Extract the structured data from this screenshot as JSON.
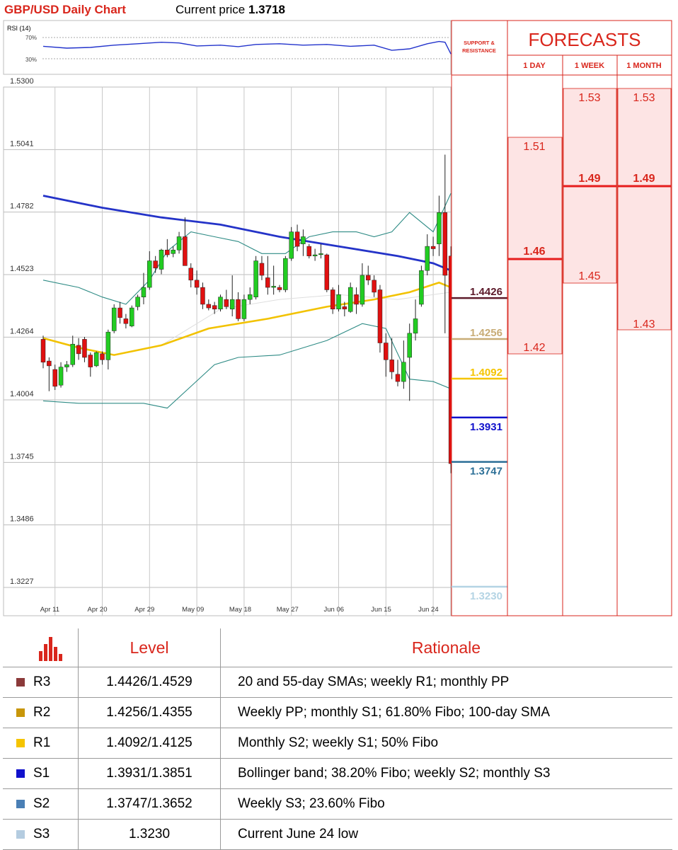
{
  "header": {
    "title": "GBP/USD Daily Chart",
    "price_label": "Current price",
    "price_value": "1.3718"
  },
  "rsi_panel": {
    "label": "RSI (14)",
    "level_high": "70%",
    "level_low": "30%"
  },
  "chart_data": {
    "type": "candlestick",
    "title": "GBP/USD Daily Chart",
    "y_ticks": [
      "1.5300",
      "1.5041",
      "1.4782",
      "1.4523",
      "1.4264",
      "1.4004",
      "1.3745",
      "1.3486",
      "1.3227"
    ],
    "ylim": [
      1.3227,
      1.53
    ],
    "x_ticks": [
      "Apr 11",
      "Apr 20",
      "Apr 29",
      "May 09",
      "May 18",
      "May 27",
      "Jun 06",
      "Jun 15",
      "Jun 24"
    ],
    "grid": true,
    "candles": [
      {
        "o": 1.4255,
        "h": 1.427,
        "l": 1.4135,
        "c": 1.416
      },
      {
        "o": 1.4165,
        "h": 1.418,
        "l": 1.404,
        "c": 1.4145
      },
      {
        "o": 1.413,
        "h": 1.415,
        "l": 1.4045,
        "c": 1.406
      },
      {
        "o": 1.4065,
        "h": 1.416,
        "l": 1.4055,
        "c": 1.414
      },
      {
        "o": 1.414,
        "h": 1.4165,
        "l": 1.412,
        "c": 1.415
      },
      {
        "o": 1.415,
        "h": 1.427,
        "l": 1.414,
        "c": 1.4235
      },
      {
        "o": 1.423,
        "h": 1.426,
        "l": 1.417,
        "c": 1.4195
      },
      {
        "o": 1.4255,
        "h": 1.4265,
        "l": 1.416,
        "c": 1.418
      },
      {
        "o": 1.419,
        "h": 1.42,
        "l": 1.41,
        "c": 1.414
      },
      {
        "o": 1.4145,
        "h": 1.4205,
        "l": 1.414,
        "c": 1.42
      },
      {
        "o": 1.4195,
        "h": 1.4205,
        "l": 1.415,
        "c": 1.417
      },
      {
        "o": 1.417,
        "h": 1.4295,
        "l": 1.413,
        "c": 1.4285
      },
      {
        "o": 1.429,
        "h": 1.44,
        "l": 1.428,
        "c": 1.4385
      },
      {
        "o": 1.4385,
        "h": 1.441,
        "l": 1.432,
        "c": 1.4345
      },
      {
        "o": 1.434,
        "h": 1.436,
        "l": 1.43,
        "c": 1.432
      },
      {
        "o": 1.431,
        "h": 1.4395,
        "l": 1.4305,
        "c": 1.4385
      },
      {
        "o": 1.439,
        "h": 1.444,
        "l": 1.4375,
        "c": 1.443
      },
      {
        "o": 1.443,
        "h": 1.453,
        "l": 1.44,
        "c": 1.447
      },
      {
        "o": 1.447,
        "h": 1.462,
        "l": 1.446,
        "c": 1.458
      },
      {
        "o": 1.458,
        "h": 1.46,
        "l": 1.453,
        "c": 1.455
      },
      {
        "o": 1.4545,
        "h": 1.463,
        "l": 1.4525,
        "c": 1.4625
      },
      {
        "o": 1.4625,
        "h": 1.467,
        "l": 1.4595,
        "c": 1.4605
      },
      {
        "o": 1.461,
        "h": 1.464,
        "l": 1.4595,
        "c": 1.4625
      },
      {
        "o": 1.4625,
        "h": 1.47,
        "l": 1.461,
        "c": 1.468
      },
      {
        "o": 1.468,
        "h": 1.476,
        "l": 1.456,
        "c": 1.456
      },
      {
        "o": 1.455,
        "h": 1.457,
        "l": 1.447,
        "c": 1.45
      },
      {
        "o": 1.45,
        "h": 1.454,
        "l": 1.444,
        "c": 1.447
      },
      {
        "o": 1.447,
        "h": 1.449,
        "l": 1.438,
        "c": 1.44
      },
      {
        "o": 1.44,
        "h": 1.442,
        "l": 1.4375,
        "c": 1.4385
      },
      {
        "o": 1.4395,
        "h": 1.441,
        "l": 1.436,
        "c": 1.438
      },
      {
        "o": 1.438,
        "h": 1.444,
        "l": 1.437,
        "c": 1.443
      },
      {
        "o": 1.442,
        "h": 1.446,
        "l": 1.438,
        "c": 1.439
      },
      {
        "o": 1.438,
        "h": 1.452,
        "l": 1.435,
        "c": 1.442
      },
      {
        "o": 1.442,
        "h": 1.445,
        "l": 1.433,
        "c": 1.434
      },
      {
        "o": 1.434,
        "h": 1.444,
        "l": 1.433,
        "c": 1.442
      },
      {
        "o": 1.442,
        "h": 1.447,
        "l": 1.44,
        "c": 1.444
      },
      {
        "o": 1.443,
        "h": 1.46,
        "l": 1.442,
        "c": 1.458
      },
      {
        "o": 1.457,
        "h": 1.46,
        "l": 1.45,
        "c": 1.452
      },
      {
        "o": 1.451,
        "h": 1.46,
        "l": 1.444,
        "c": 1.447
      },
      {
        "o": 1.447,
        "h": 1.456,
        "l": 1.444,
        "c": 1.4475
      },
      {
        "o": 1.447,
        "h": 1.448,
        "l": 1.445,
        "c": 1.446
      },
      {
        "o": 1.446,
        "h": 1.46,
        "l": 1.445,
        "c": 1.459
      },
      {
        "o": 1.459,
        "h": 1.472,
        "l": 1.458,
        "c": 1.47
      },
      {
        "o": 1.47,
        "h": 1.473,
        "l": 1.462,
        "c": 1.464
      },
      {
        "o": 1.465,
        "h": 1.471,
        "l": 1.46,
        "c": 1.468
      },
      {
        "o": 1.464,
        "h": 1.465,
        "l": 1.459,
        "c": 1.46
      },
      {
        "o": 1.46,
        "h": 1.463,
        "l": 1.458,
        "c": 1.4605
      },
      {
        "o": 1.461,
        "h": 1.465,
        "l": 1.459,
        "c": 1.461
      },
      {
        "o": 1.4605,
        "h": 1.461,
        "l": 1.445,
        "c": 1.446
      },
      {
        "o": 1.446,
        "h": 1.447,
        "l": 1.436,
        "c": 1.438
      },
      {
        "o": 1.438,
        "h": 1.448,
        "l": 1.437,
        "c": 1.444
      },
      {
        "o": 1.439,
        "h": 1.441,
        "l": 1.435,
        "c": 1.438
      },
      {
        "o": 1.437,
        "h": 1.449,
        "l": 1.4365,
        "c": 1.447
      },
      {
        "o": 1.444,
        "h": 1.447,
        "l": 1.436,
        "c": 1.44
      },
      {
        "o": 1.44,
        "h": 1.457,
        "l": 1.439,
        "c": 1.452
      },
      {
        "o": 1.452,
        "h": 1.456,
        "l": 1.448,
        "c": 1.45
      },
      {
        "o": 1.45,
        "h": 1.452,
        "l": 1.443,
        "c": 1.445
      },
      {
        "o": 1.446,
        "h": 1.448,
        "l": 1.42,
        "c": 1.424
      },
      {
        "o": 1.424,
        "h": 1.428,
        "l": 1.41,
        "c": 1.417
      },
      {
        "o": 1.417,
        "h": 1.426,
        "l": 1.409,
        "c": 1.412
      },
      {
        "o": 1.411,
        "h": 1.417,
        "l": 1.406,
        "c": 1.408
      },
      {
        "o": 1.408,
        "h": 1.425,
        "l": 1.405,
        "c": 1.416
      },
      {
        "o": 1.418,
        "h": 1.432,
        "l": 1.4,
        "c": 1.428
      },
      {
        "o": 1.428,
        "h": 1.442,
        "l": 1.425,
        "c": 1.434
      },
      {
        "o": 1.44,
        "h": 1.456,
        "l": 1.439,
        "c": 1.454
      },
      {
        "o": 1.454,
        "h": 1.469,
        "l": 1.452,
        "c": 1.464
      },
      {
        "o": 1.464,
        "h": 1.468,
        "l": 1.46,
        "c": 1.463
      },
      {
        "o": 1.465,
        "h": 1.485,
        "l": 1.46,
        "c": 1.478
      },
      {
        "o": 1.478,
        "h": 1.502,
        "l": 1.428,
        "c": 1.452
      },
      {
        "o": 1.46,
        "h": 1.464,
        "l": 1.37,
        "c": 1.374
      }
    ],
    "sma_blue": [
      {
        "i": 0,
        "v": 1.485
      },
      {
        "i": 10,
        "v": 1.48
      },
      {
        "i": 20,
        "v": 1.476
      },
      {
        "i": 30,
        "v": 1.473
      },
      {
        "i": 40,
        "v": 1.468
      },
      {
        "i": 50,
        "v": 1.464
      },
      {
        "i": 60,
        "v": 1.46
      },
      {
        "i": 66,
        "v": 1.457
      },
      {
        "i": 69,
        "v": 1.454
      }
    ],
    "sma_yellow": [
      {
        "i": 0,
        "v": 1.426
      },
      {
        "i": 6,
        "v": 1.422
      },
      {
        "i": 12,
        "v": 1.419
      },
      {
        "i": 20,
        "v": 1.423
      },
      {
        "i": 28,
        "v": 1.43
      },
      {
        "i": 38,
        "v": 1.434
      },
      {
        "i": 48,
        "v": 1.439
      },
      {
        "i": 56,
        "v": 1.442
      },
      {
        "i": 62,
        "v": 1.445
      },
      {
        "i": 67,
        "v": 1.449
      },
      {
        "i": 69,
        "v": 1.447
      }
    ],
    "bb_upper": [
      {
        "i": 0,
        "v": 1.45
      },
      {
        "i": 6,
        "v": 1.447
      },
      {
        "i": 10,
        "v": 1.443
      },
      {
        "i": 14,
        "v": 1.44
      },
      {
        "i": 18,
        "v": 1.45
      },
      {
        "i": 21,
        "v": 1.462
      },
      {
        "i": 25,
        "v": 1.47
      },
      {
        "i": 29,
        "v": 1.468
      },
      {
        "i": 33,
        "v": 1.466
      },
      {
        "i": 37,
        "v": 1.461
      },
      {
        "i": 41,
        "v": 1.461
      },
      {
        "i": 45,
        "v": 1.468
      },
      {
        "i": 49,
        "v": 1.47
      },
      {
        "i": 53,
        "v": 1.47
      },
      {
        "i": 56,
        "v": 1.468
      },
      {
        "i": 59,
        "v": 1.47
      },
      {
        "i": 62,
        "v": 1.478
      },
      {
        "i": 66,
        "v": 1.47
      },
      {
        "i": 69,
        "v": 1.486
      }
    ],
    "bb_lower": [
      {
        "i": 0,
        "v": 1.4
      },
      {
        "i": 6,
        "v": 1.399
      },
      {
        "i": 12,
        "v": 1.399
      },
      {
        "i": 17,
        "v": 1.399
      },
      {
        "i": 21,
        "v": 1.397
      },
      {
        "i": 25,
        "v": 1.406
      },
      {
        "i": 29,
        "v": 1.415
      },
      {
        "i": 33,
        "v": 1.418
      },
      {
        "i": 40,
        "v": 1.419
      },
      {
        "i": 48,
        "v": 1.425
      },
      {
        "i": 54,
        "v": 1.432
      },
      {
        "i": 58,
        "v": 1.43
      },
      {
        "i": 62,
        "v": 1.409
      },
      {
        "i": 66,
        "v": 1.408
      },
      {
        "i": 69,
        "v": 1.405
      }
    ],
    "sma_grey": [
      {
        "i": 20,
        "v": 1.423
      },
      {
        "i": 30,
        "v": 1.438
      },
      {
        "i": 40,
        "v": 1.442
      },
      {
        "i": 50,
        "v": 1.444
      },
      {
        "i": 60,
        "v": 1.442
      },
      {
        "i": 69,
        "v": 1.445
      }
    ],
    "rsi": [
      {
        "i": 0,
        "v": 55
      },
      {
        "i": 4,
        "v": 50
      },
      {
        "i": 8,
        "v": 52
      },
      {
        "i": 12,
        "v": 58
      },
      {
        "i": 16,
        "v": 62
      },
      {
        "i": 20,
        "v": 66
      },
      {
        "i": 23,
        "v": 64
      },
      {
        "i": 26,
        "v": 56
      },
      {
        "i": 30,
        "v": 58
      },
      {
        "i": 33,
        "v": 54
      },
      {
        "i": 36,
        "v": 60
      },
      {
        "i": 40,
        "v": 62
      },
      {
        "i": 44,
        "v": 58
      },
      {
        "i": 48,
        "v": 60
      },
      {
        "i": 52,
        "v": 55
      },
      {
        "i": 56,
        "v": 58
      },
      {
        "i": 59,
        "v": 44
      },
      {
        "i": 62,
        "v": 48
      },
      {
        "i": 65,
        "v": 62
      },
      {
        "i": 67,
        "v": 68
      },
      {
        "i": 68,
        "v": 66
      },
      {
        "i": 69,
        "v": 34
      }
    ],
    "support_resistance": [
      {
        "label": "1.4426",
        "color": "#5c1a2a"
      },
      {
        "label": "1.4256",
        "color": "#c8ac76"
      },
      {
        "label": "1.4092",
        "color": "#f5c400"
      },
      {
        "label": "1.3931",
        "color": "#1111cc"
      },
      {
        "label": "1.3747",
        "color": "#2a6e96"
      },
      {
        "label": "1.3230",
        "color": "#b4d4e4"
      }
    ]
  },
  "forecast_panel": {
    "sr_header": "SUPPORT & RESISTANCE",
    "title": "FORECASTS",
    "columns": [
      "1 DAY",
      "1 WEEK",
      "1 MONTH"
    ],
    "day": {
      "high": "1.51",
      "mid": "1.46",
      "low": "1.42"
    },
    "week": {
      "high": "1.53",
      "mid": "1.49",
      "low": "1.45"
    },
    "month": {
      "high": "1.53",
      "mid": "1.49",
      "low": "1.43"
    }
  },
  "table": {
    "col_level": "Level",
    "col_rationale": "Rationale",
    "rows": [
      {
        "name": "R3",
        "level": "1.4426/1.4529",
        "rationale": "20 and 55-day SMAs; weekly R1; monthly PP",
        "color": "#8b3a3a"
      },
      {
        "name": "R2",
        "level": "1.4256/1.4355",
        "rationale": "Weekly PP; monthly S1; 61.80% Fibo; 100-day SMA",
        "color": "#c8960a"
      },
      {
        "name": "R1",
        "level": "1.4092/1.4125",
        "rationale": "Monthly S2; weekly S1; 50% Fibo",
        "color": "#f5c400"
      },
      {
        "name": "S1",
        "level": "1.3931/1.3851",
        "rationale": "Bollinger band; 38.20% Fibo; weekly S2; monthly S3",
        "color": "#1111cc"
      },
      {
        "name": "S2",
        "level": "1.3747/1.3652",
        "rationale": "Weekly S3; 23.60% Fibo",
        "color": "#4a7fb5"
      },
      {
        "name": "S3",
        "level": "1.3230",
        "rationale": "Current June 24 low",
        "color": "#b4cce0"
      }
    ]
  }
}
